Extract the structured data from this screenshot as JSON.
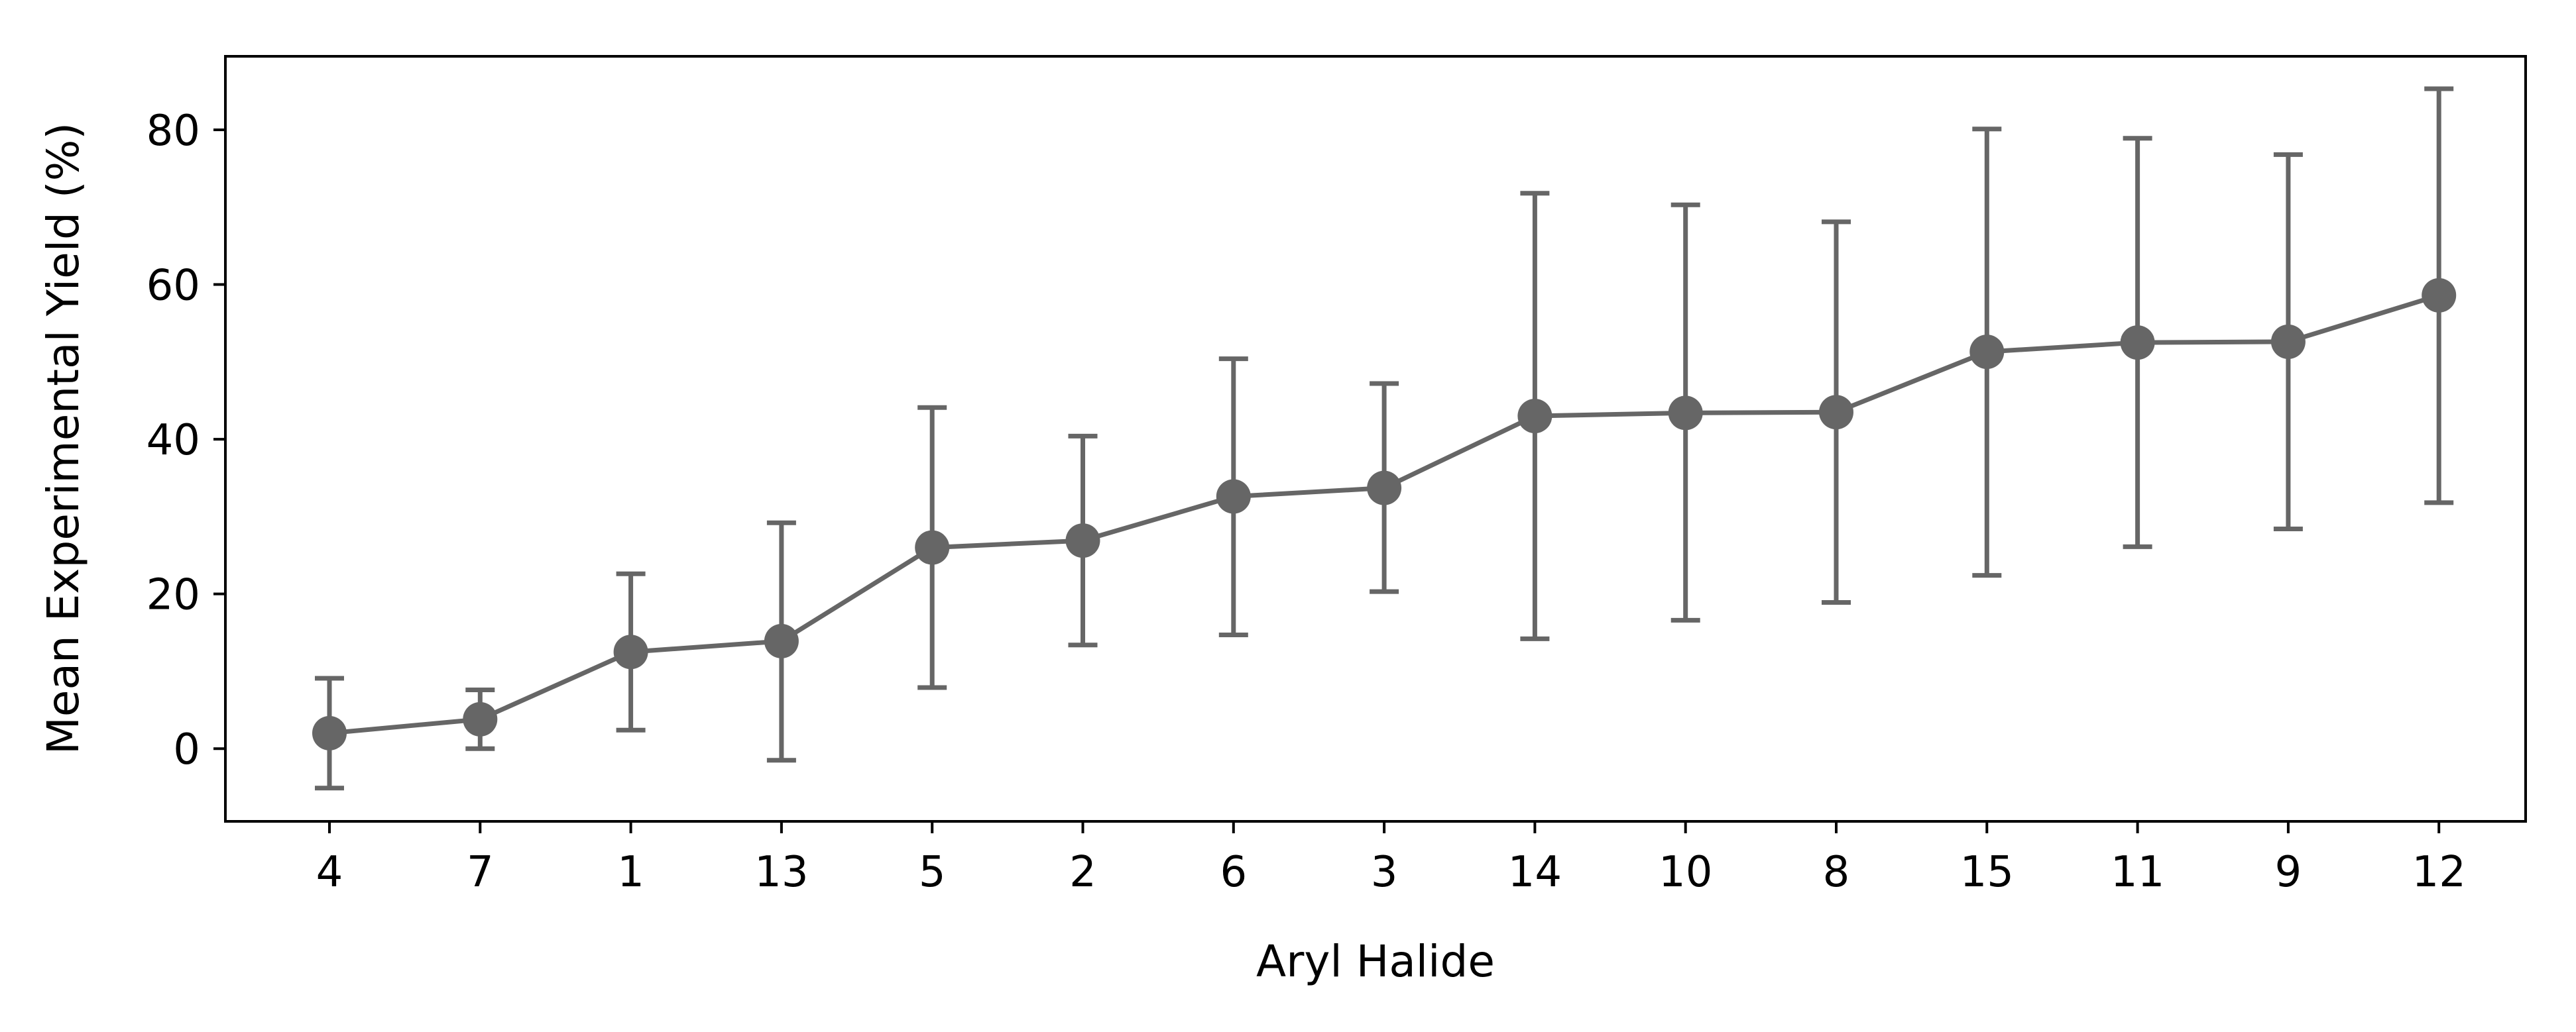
{
  "chart_data": {
    "type": "line",
    "xlabel": "Aryl Halide",
    "ylabel": "Mean Experimental Yield (%)",
    "categories": [
      "4",
      "7",
      "1",
      "13",
      "5",
      "2",
      "6",
      "3",
      "14",
      "10",
      "8",
      "15",
      "11",
      "9",
      "12"
    ],
    "series": [
      {
        "values": [
          2.0,
          3.8,
          12.5,
          13.9,
          26.0,
          26.9,
          32.6,
          33.7,
          43.0,
          43.4,
          43.5,
          51.3,
          52.5,
          52.6,
          58.6
        ],
        "error_lower": [
          -5.1,
          0.0,
          2.4,
          -1.5,
          7.9,
          13.4,
          14.7,
          20.3,
          14.2,
          16.6,
          18.9,
          22.4,
          26.1,
          28.4,
          31.8
        ],
        "error_upper": [
          9.1,
          7.6,
          22.6,
          29.2,
          44.1,
          40.4,
          50.4,
          47.2,
          71.8,
          70.3,
          68.1,
          80.1,
          78.9,
          76.8,
          85.3
        ]
      }
    ],
    "ylim": [
      -9.4,
      89.5
    ],
    "yticks": [
      0,
      20,
      40,
      60,
      80
    ],
    "grid": false,
    "colors": {
      "series": "#666666",
      "axes": "#000000"
    }
  }
}
